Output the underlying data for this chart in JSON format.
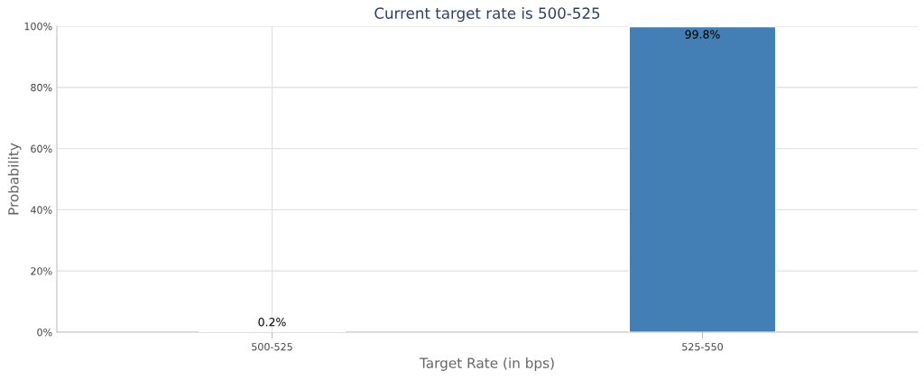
{
  "chart_data": {
    "type": "bar",
    "title": "Current target rate is 500-525",
    "xlabel": "Target Rate (in bps)",
    "ylabel": "Probability",
    "categories": [
      "500-525",
      "525-550"
    ],
    "values": [
      0.2,
      99.8
    ],
    "color": "#437fb5",
    "value_labels": [
      "0.2%",
      "99.8%"
    ],
    "ylim": [
      0,
      100
    ],
    "yticks": [
      {
        "value": 0,
        "label": "0%"
      },
      {
        "value": 20,
        "label": "20%"
      },
      {
        "value": 40,
        "label": "40%"
      },
      {
        "value": 60,
        "label": "60%"
      },
      {
        "value": 80,
        "label": "80%"
      },
      {
        "value": 100,
        "label": "100%"
      }
    ],
    "grid": true
  }
}
